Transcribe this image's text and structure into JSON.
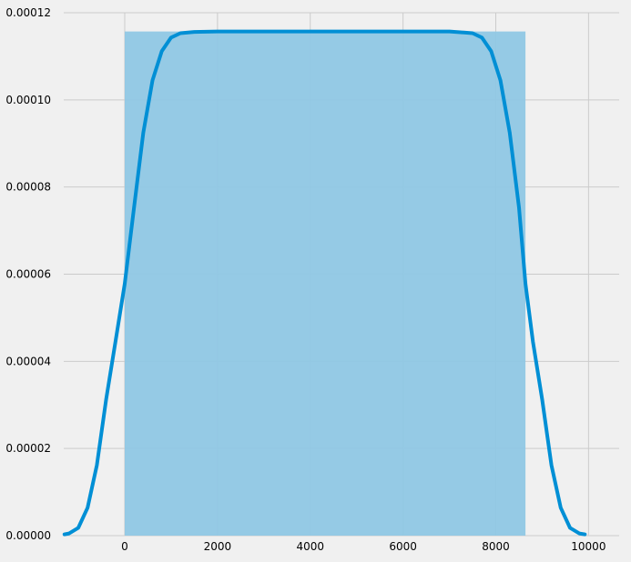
{
  "chart_data": {
    "type": "area",
    "title": "",
    "xlabel": "",
    "ylabel": "",
    "xlim": [
      -1315,
      10660
    ],
    "ylim": [
      0,
      0.00012
    ],
    "x_ticks": [
      0,
      2000,
      4000,
      6000,
      8000,
      10000
    ],
    "x_tick_labels": [
      "0",
      "2000",
      "4000",
      "6000",
      "8000",
      "10000"
    ],
    "y_ticks": [
      0,
      2e-05,
      4e-05,
      6e-05,
      8e-05,
      0.0001,
      0.00012
    ],
    "y_tick_labels": [
      "0.00000",
      "0.00002",
      "0.00004",
      "0.00006",
      "0.00008",
      "0.00010",
      "0.00012"
    ],
    "grid": true,
    "background": "#f0f0f0",
    "grid_color": "#cbcbcb",
    "histogram": {
      "bins": [
        {
          "x0": 0,
          "x1": 8640,
          "density": 0.0001157
        }
      ],
      "color": "#8fc7e4"
    },
    "kde": {
      "color": "#008fd5",
      "x": [
        -1300,
        -1200,
        -1000,
        -800,
        -600,
        -400,
        -200,
        0,
        200,
        400,
        600,
        800,
        1000,
        1200,
        1500,
        2000,
        3000,
        4000,
        5000,
        6000,
        7000,
        7500,
        7700,
        7900,
        8100,
        8300,
        8500,
        8640,
        8800,
        9000,
        9200,
        9400,
        9600,
        9800,
        9920
      ],
      "y": [
        3e-07,
        5e-07,
        1.8e-06,
        6.4e-06,
        1.62e-05,
        3.13e-05,
        4.45e-05,
        5.78e-05,
        7.53e-05,
        9.25e-05,
        0.0001045,
        0.0001112,
        0.0001143,
        0.0001153,
        0.0001156,
        0.0001157,
        0.0001157,
        0.0001157,
        0.0001157,
        0.0001157,
        0.0001157,
        0.0001153,
        0.0001143,
        0.0001112,
        0.0001045,
        9.25e-05,
        7.53e-05,
        5.78e-05,
        4.45e-05,
        3.13e-05,
        1.62e-05,
        6.4e-06,
        1.8e-06,
        5e-07,
        3e-07
      ]
    }
  }
}
